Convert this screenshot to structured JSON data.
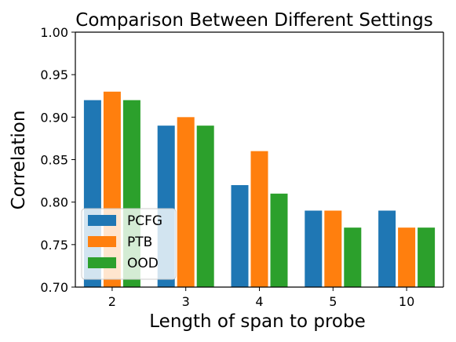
{
  "chart_data": {
    "type": "bar",
    "title": "Comparison Between Different Settings",
    "xlabel": "Length of span to probe",
    "ylabel": "Correlation",
    "categories": [
      "2",
      "3",
      "4",
      "5",
      "10"
    ],
    "ylim": [
      0.7,
      1.0
    ],
    "yticks": [
      "0.70",
      "0.75",
      "0.80",
      "0.85",
      "0.90",
      "0.95",
      "1.00"
    ],
    "grid": false,
    "legend_position": "lower-left",
    "series": [
      {
        "name": "PCFG",
        "color": "#1f77b4",
        "values": [
          0.92,
          0.89,
          0.82,
          0.79,
          0.79
        ]
      },
      {
        "name": "PTB",
        "color": "#ff7f0e",
        "values": [
          0.93,
          0.9,
          0.86,
          0.79,
          0.77
        ]
      },
      {
        "name": "OOD",
        "color": "#2ca02c",
        "values": [
          0.92,
          0.89,
          0.81,
          0.77,
          0.77
        ]
      }
    ]
  }
}
